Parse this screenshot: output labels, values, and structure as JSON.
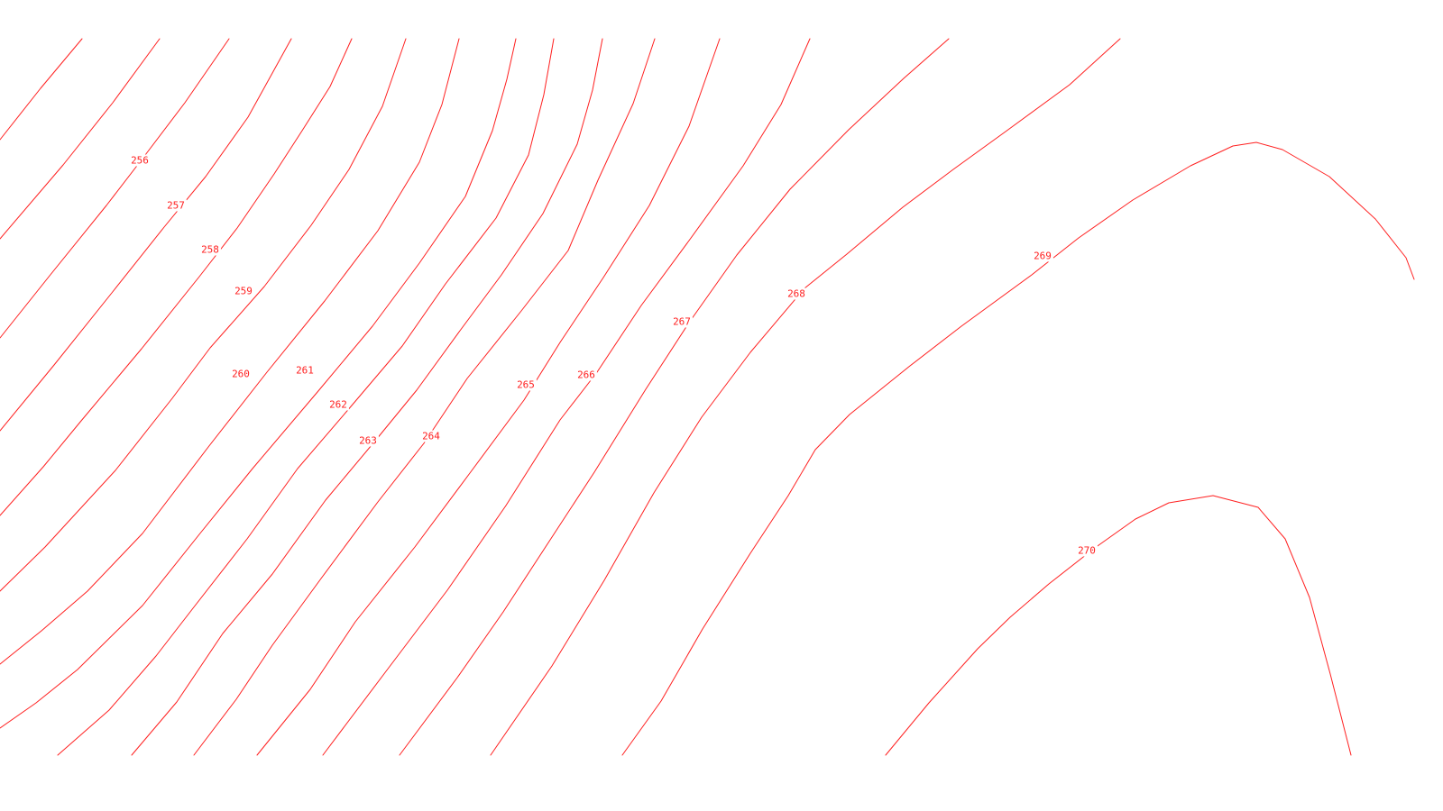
{
  "map": {
    "line_color": "#ff2020",
    "background": "#ffffff",
    "contour_labels": [
      "256",
      "257",
      "258",
      "259",
      "260",
      "261",
      "262",
      "263",
      "264",
      "265",
      "266",
      "267",
      "268",
      "269",
      "270"
    ]
  }
}
